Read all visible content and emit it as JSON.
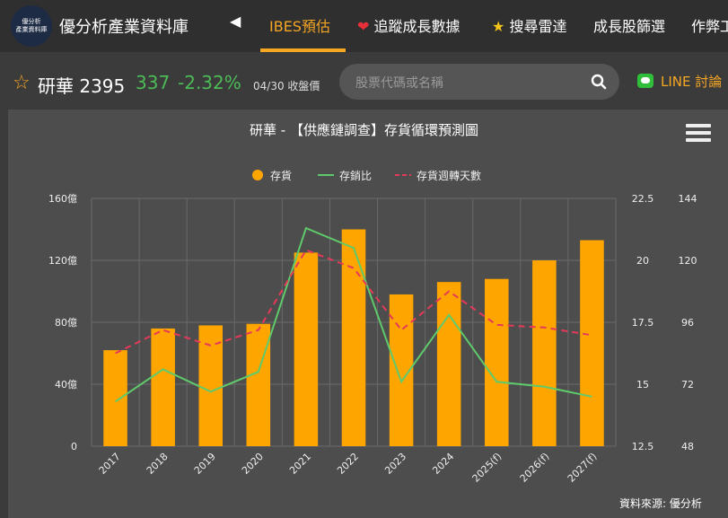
{
  "app": {
    "logo_text_line1": "優分析",
    "logo_text_line2": "產業資料庫",
    "brand": "優分析產業資料庫"
  },
  "nav": {
    "items": [
      {
        "label": "IBES預估",
        "active": true
      },
      {
        "label": "追蹤成長數據",
        "icon": "heart-icon"
      },
      {
        "label": "搜尋雷達",
        "icon": "star-icon"
      },
      {
        "label": "成長股篩選"
      },
      {
        "label": "作弊工"
      }
    ]
  },
  "stock": {
    "name": "研華 2395",
    "price": "337",
    "change": "-2.32%",
    "date_note": "04/30 收盤價"
  },
  "search": {
    "placeholder": "股票代碼或名稱"
  },
  "line_button": {
    "label": "LINE 討論"
  },
  "colors": {
    "accent": "#f5a623",
    "up_down": "#4cbb57",
    "bar": "#ffa500",
    "ratio_line": "#5fca6b",
    "days_line": "#e6395a"
  },
  "chart_data": {
    "type": "bar",
    "title": "研華 - 【供應鏈調查】存貨循環預測圖",
    "categories": [
      "2017",
      "2018",
      "2019",
      "2020",
      "2021",
      "2022",
      "2023",
      "2024",
      "2025(f)",
      "2026(f)",
      "2027(f)"
    ],
    "series": [
      {
        "name": "存貨",
        "type": "bar",
        "axis": "left",
        "values": [
          62,
          76,
          78,
          79,
          125,
          140,
          98,
          106,
          108,
          120,
          133
        ]
      },
      {
        "name": "存銷比",
        "type": "line",
        "axis": "right1",
        "values": [
          14.3,
          15.6,
          14.7,
          15.5,
          21.3,
          20.5,
          15.1,
          17.8,
          15.1,
          14.9,
          14.5
        ]
      },
      {
        "name": "存貨週轉天數",
        "type": "line",
        "dashed": true,
        "axis": "right2",
        "values": [
          84,
          93,
          87,
          93,
          124,
          117,
          93,
          108,
          95,
          94,
          91
        ]
      }
    ],
    "left_axis": {
      "ylim": [
        0,
        160
      ],
      "ticks": [
        "0",
        "40億",
        "80億",
        "120億",
        "160億"
      ]
    },
    "right_axis_1": {
      "ylim": [
        12.5,
        22.5
      ],
      "ticks": [
        "12.5",
        "15",
        "17.5",
        "20",
        "22.5"
      ]
    },
    "right_axis_2": {
      "ylim": [
        48,
        144
      ],
      "ticks": [
        "48",
        "72",
        "96",
        "120",
        "144"
      ]
    },
    "grid": true,
    "legend_placement": "top-center",
    "source": "資料來源: 優分析"
  }
}
